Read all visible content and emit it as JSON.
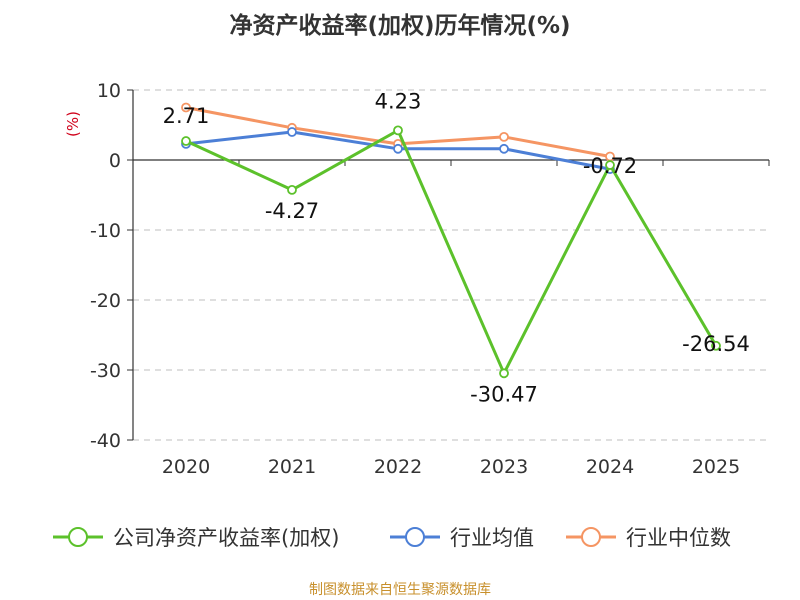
{
  "chart_data": {
    "type": "line",
    "title": "净资产收益率(加权)历年情况(%)",
    "ylabel": "(%)",
    "xlabel": "",
    "categories": [
      "2020",
      "2021",
      "2022",
      "2023",
      "2024",
      "2025"
    ],
    "ylim": [
      -40,
      10
    ],
    "yticks": [
      10,
      0,
      -10,
      -20,
      -30,
      -40
    ],
    "grid": true,
    "legend_position": "bottom",
    "series": [
      {
        "name": "公司净资产收益率(加权)",
        "color": "#5cc12b",
        "values": [
          2.71,
          -4.27,
          4.23,
          -30.47,
          -0.72,
          -26.54
        ],
        "labels": [
          "2.71",
          "-4.27",
          "4.23",
          "-30.47",
          "-0.72",
          "-26.54"
        ]
      },
      {
        "name": "行业均值",
        "color": "#4c7fd6",
        "values": [
          2.3,
          4.0,
          1.6,
          1.6,
          -1.3,
          null
        ]
      },
      {
        "name": "行业中位数",
        "color": "#f59563",
        "values": [
          7.5,
          4.6,
          2.3,
          3.3,
          0.5,
          null
        ]
      }
    ]
  },
  "source_note": "制图数据来自恒生聚源数据库"
}
